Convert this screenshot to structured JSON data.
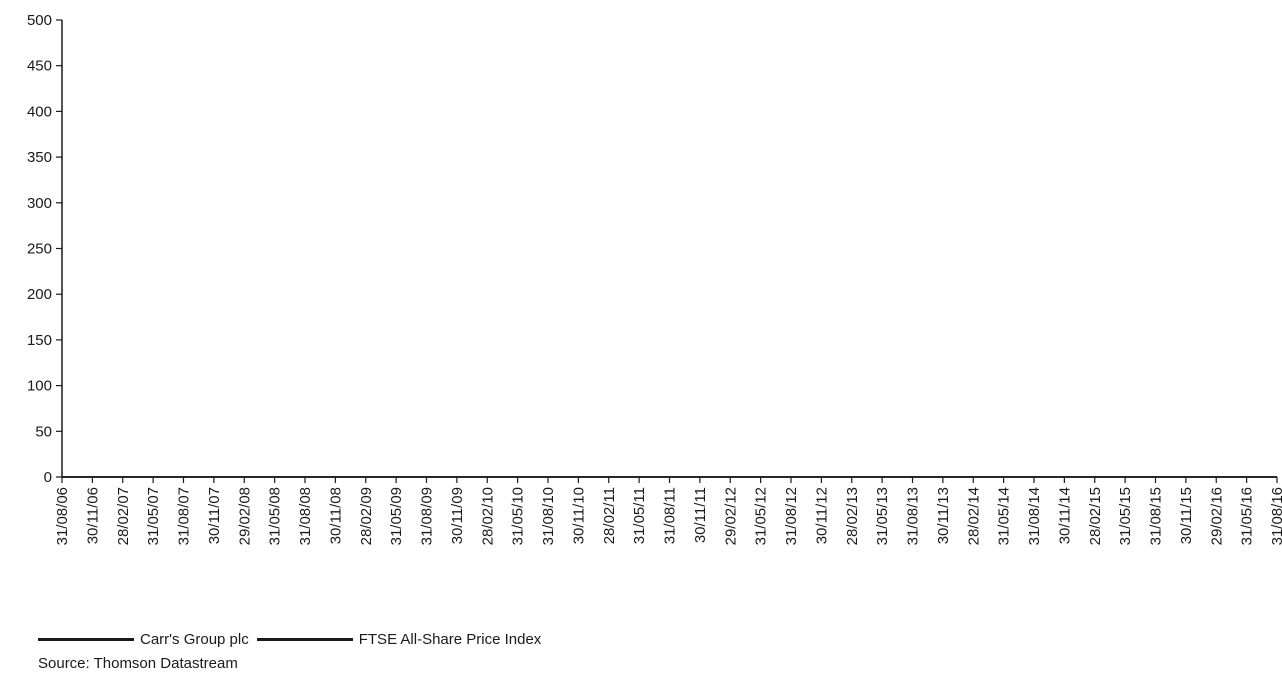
{
  "chart_data": {
    "type": "line",
    "title": "",
    "xlabel": "",
    "ylabel": "",
    "ylim": [
      0,
      500
    ],
    "yticks": [
      0,
      50,
      100,
      150,
      200,
      250,
      300,
      350,
      400,
      450,
      500
    ],
    "categories": [
      "31/08/06",
      "30/11/06",
      "28/02/07",
      "31/05/07",
      "31/08/07",
      "30/11/07",
      "29/02/08",
      "31/05/08",
      "31/08/08",
      "30/11/08",
      "28/02/09",
      "31/05/09",
      "31/08/09",
      "30/11/09",
      "28/02/10",
      "31/05/10",
      "31/08/10",
      "30/11/10",
      "28/02/11",
      "31/05/11",
      "31/08/11",
      "30/11/11",
      "29/02/12",
      "31/05/12",
      "31/08/12",
      "30/11/12",
      "28/02/13",
      "31/05/13",
      "31/08/13",
      "30/11/13",
      "28/02/14",
      "31/05/14",
      "31/08/14",
      "30/11/14",
      "28/02/15",
      "31/05/15",
      "31/08/15",
      "30/11/15",
      "29/02/16",
      "31/05/16",
      "31/08/16"
    ],
    "series": [
      {
        "name": "Carr's Group plc",
        "color": "#1a1a1a",
        "values": [
          0,
          0,
          0,
          0,
          0,
          0,
          0,
          0,
          0,
          0,
          0,
          0,
          0,
          0,
          0,
          0,
          0,
          0,
          0,
          0,
          0,
          0,
          0,
          0,
          0,
          0,
          0,
          0,
          0,
          0,
          0,
          0,
          0,
          0,
          0,
          0,
          0,
          0,
          0,
          0,
          0
        ]
      },
      {
        "name": "FTSE All-Share Price Index",
        "color": "#1a1a1a",
        "values": [
          0,
          0,
          0,
          0,
          0,
          0,
          0,
          0,
          0,
          0,
          0,
          0,
          0,
          0,
          0,
          0,
          0,
          0,
          0,
          0,
          0,
          0,
          0,
          0,
          0,
          0,
          0,
          0,
          0,
          0,
          0,
          0,
          0,
          0,
          0,
          0,
          0,
          0,
          0,
          0,
          0
        ]
      }
    ],
    "grid": false,
    "legend": "bottom-left"
  },
  "source": "Source: Thomson Datastream"
}
